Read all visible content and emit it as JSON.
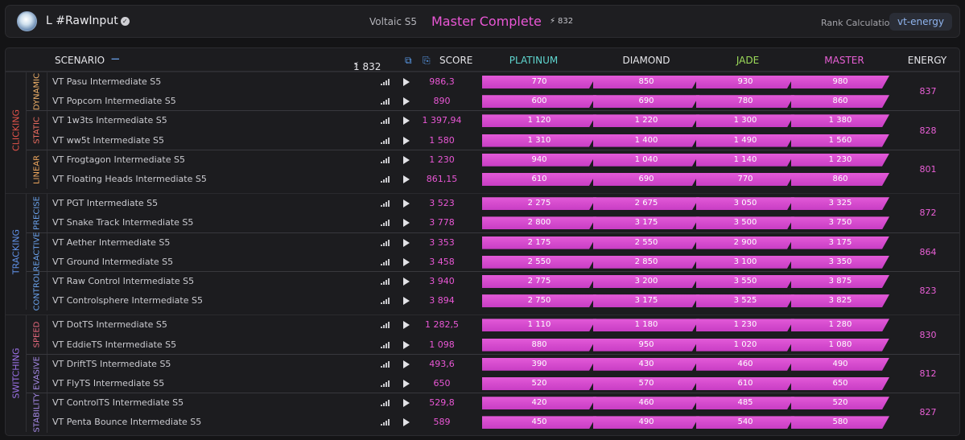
{
  "header": {
    "username": "L #RawInput",
    "verified_glyph": "✓",
    "benchmark": "Voltaic S5",
    "rank_title": "Master Complete",
    "energy_total": "832",
    "rank_calc_label": "Rank Calculation",
    "rank_calc_value": "vt-energy",
    "colors": {
      "rank_title": "#ea57d6",
      "rank_calc_value": "#8fb4ee"
    }
  },
  "table": {
    "headers": {
      "scenario": "SCENARIO",
      "collapse": "−",
      "total": "1 832",
      "score": "SCORE",
      "platinum": "PLATINUM",
      "diamond": "DIAMOND",
      "jade": "JADE",
      "master": "MASTER",
      "energy": "ENERGY"
    },
    "rank_colors": {
      "platinum": "#5fd6cf",
      "diamond": "#e6e6ea",
      "jade": "#9ddc5a",
      "master": "#e95fd6"
    },
    "categories": [
      {
        "name": "CLICKING",
        "color": "#e0524a",
        "subs": [
          {
            "name": "DYNAMIC",
            "color": "#f2b36a",
            "energy": "837",
            "rows": [
              {
                "name": "VT Pasu Intermediate S5",
                "score": "986,3",
                "thresholds": [
                  "770",
                  "850",
                  "930",
                  "980"
                ]
              },
              {
                "name": "VT Popcorn Intermediate S5",
                "score": "890",
                "thresholds": [
                  "600",
                  "690",
                  "780",
                  "860"
                ]
              }
            ]
          },
          {
            "name": "STATIC",
            "color": "#f06e62",
            "energy": "828",
            "rows": [
              {
                "name": "VT 1w3ts Intermediate S5",
                "score": "1 397,94",
                "thresholds": [
                  "1 120",
                  "1 220",
                  "1 300",
                  "1 380"
                ]
              },
              {
                "name": "VT ww5t Intermediate S5",
                "score": "1 580",
                "thresholds": [
                  "1 310",
                  "1 400",
                  "1 490",
                  "1 560"
                ]
              }
            ]
          },
          {
            "name": "LINEAR",
            "color": "#f0a85e",
            "energy": "801",
            "rows": [
              {
                "name": "VT Frogtagon Intermediate S5",
                "score": "1 230",
                "thresholds": [
                  "940",
                  "1 040",
                  "1 140",
                  "1 230"
                ]
              },
              {
                "name": "VT Floating Heads Intermediate S5",
                "score": "861,15",
                "thresholds": [
                  "610",
                  "690",
                  "770",
                  "860"
                ]
              }
            ]
          }
        ]
      },
      {
        "name": "TRACKING",
        "color": "#5f90e6",
        "subs": [
          {
            "name": "PRECISE",
            "color": "#6aa2ec",
            "energy": "872",
            "rows": [
              {
                "name": "VT PGT Intermediate S5",
                "score": "3 523",
                "thresholds": [
                  "2 275",
                  "2 675",
                  "3 050",
                  "3 325"
                ]
              },
              {
                "name": "VT Snake Track Intermediate S5",
                "score": "3 778",
                "thresholds": [
                  "2 800",
                  "3 175",
                  "3 500",
                  "3 750"
                ]
              }
            ]
          },
          {
            "name": "REACTIVE",
            "color": "#6aa2ec",
            "energy": "864",
            "rows": [
              {
                "name": "VT Aether Intermediate S5",
                "score": "3 353",
                "thresholds": [
                  "2 175",
                  "2 550",
                  "2 900",
                  "3 175"
                ]
              },
              {
                "name": "VT Ground Intermediate S5",
                "score": "3 458",
                "thresholds": [
                  "2 550",
                  "2 850",
                  "3 100",
                  "3 350"
                ]
              }
            ]
          },
          {
            "name": "CONTROL",
            "color": "#6aa2ec",
            "energy": "823",
            "rows": [
              {
                "name": "VT Raw Control Intermediate S5",
                "score": "3 940",
                "thresholds": [
                  "2 775",
                  "3 200",
                  "3 550",
                  "3 875"
                ]
              },
              {
                "name": "VT Controlsphere Intermediate S5",
                "score": "3 894",
                "thresholds": [
                  "2 750",
                  "3 175",
                  "3 525",
                  "3 825"
                ]
              }
            ]
          }
        ]
      },
      {
        "name": "SWITCHING",
        "color": "#9a70e6",
        "subs": [
          {
            "name": "SPEED",
            "color": "#e8697e",
            "energy": "830",
            "rows": [
              {
                "name": "VT DotTS Intermediate S5",
                "score": "1 282,5",
                "thresholds": [
                  "1 110",
                  "1 180",
                  "1 230",
                  "1 280"
                ]
              },
              {
                "name": "VT EddieTS Intermediate S5",
                "score": "1 098",
                "thresholds": [
                  "880",
                  "950",
                  "1 020",
                  "1 080"
                ]
              }
            ]
          },
          {
            "name": "EVASIVE",
            "color": "#a78ae8",
            "energy": "812",
            "rows": [
              {
                "name": "VT DriftTS Intermediate S5",
                "score": "493,6",
                "thresholds": [
                  "390",
                  "430",
                  "460",
                  "490"
                ]
              },
              {
                "name": "VT FlyTS Intermediate S5",
                "score": "650",
                "thresholds": [
                  "520",
                  "570",
                  "610",
                  "650"
                ]
              }
            ]
          },
          {
            "name": "STABILITY",
            "color": "#a78ae8",
            "energy": "827",
            "rows": [
              {
                "name": "VT ControlTS Intermediate S5",
                "score": "529,8",
                "thresholds": [
                  "420",
                  "460",
                  "485",
                  "520"
                ]
              },
              {
                "name": "VT Penta Bounce Intermediate S5",
                "score": "589",
                "thresholds": [
                  "450",
                  "490",
                  "540",
                  "580"
                ]
              }
            ]
          }
        ]
      }
    ]
  }
}
